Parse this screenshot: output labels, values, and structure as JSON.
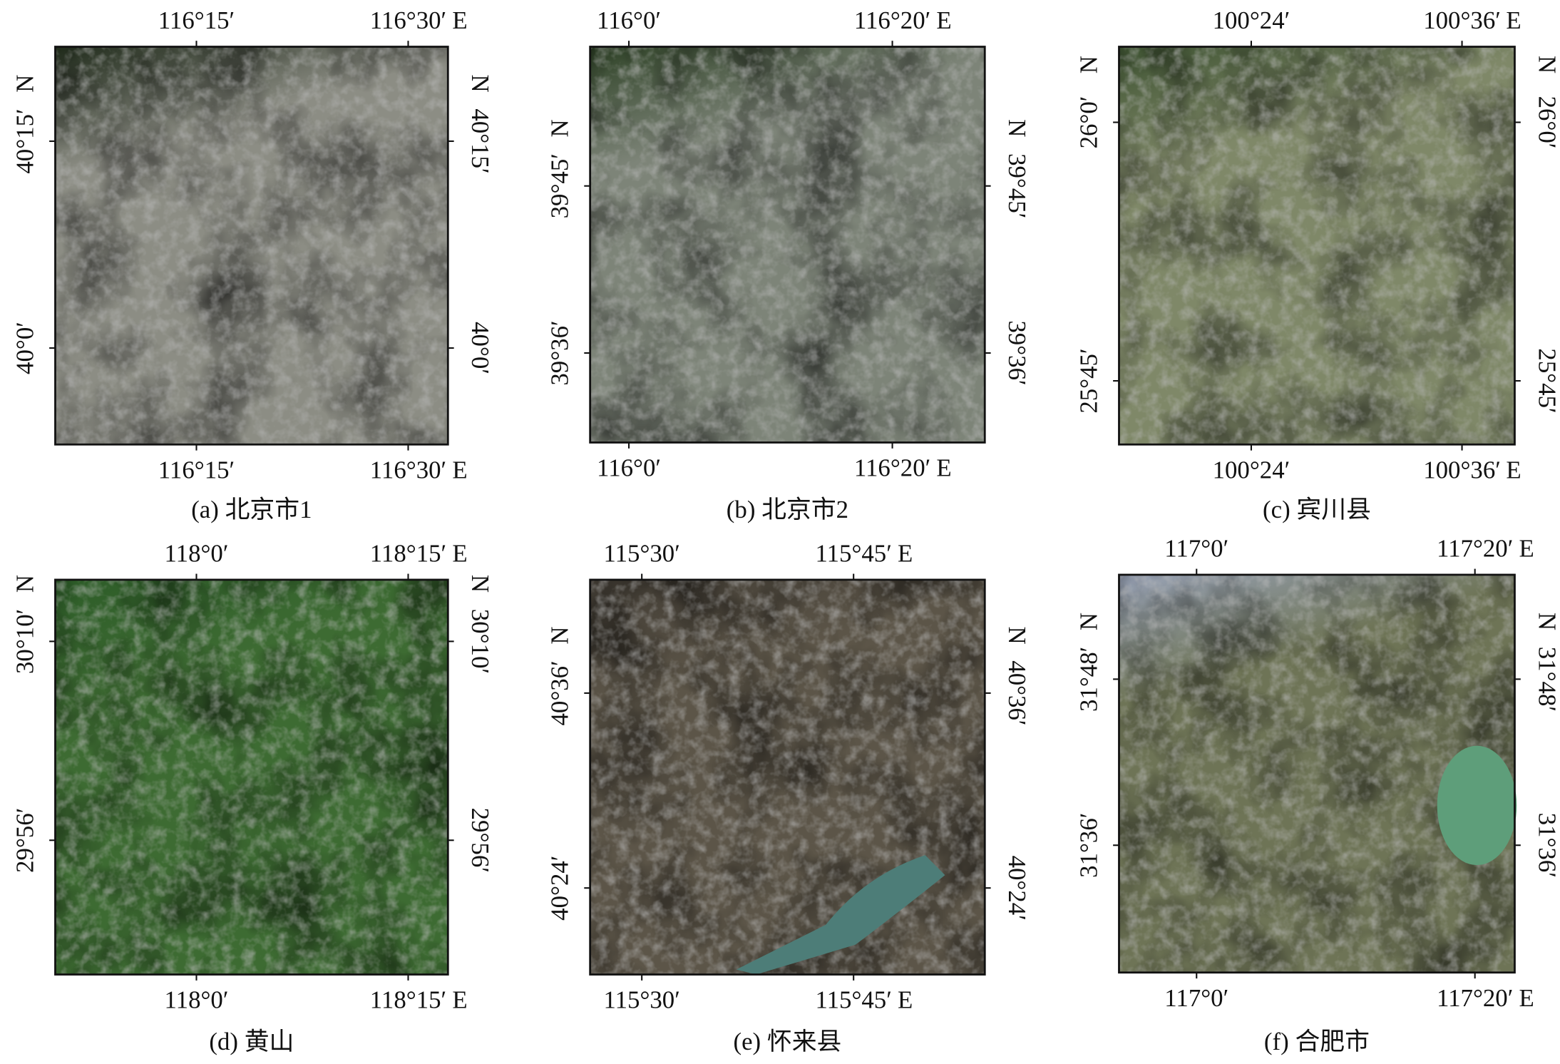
{
  "panels": [
    {
      "caption": "(a) 北京市1",
      "x_ticks": [
        "116°15′",
        "116°30′"
      ],
      "x_hemisphere": "E",
      "y_ticks": [
        "40°15′",
        "40°0′"
      ],
      "y_hemisphere": "N"
    },
    {
      "caption": "(b) 北京市2",
      "x_ticks": [
        "116°0′",
        "116°20′"
      ],
      "x_hemisphere": "E",
      "y_ticks": [
        "39°45′",
        "39°36′"
      ],
      "y_hemisphere": "N"
    },
    {
      "caption": "(c) 宾川县",
      "x_ticks": [
        "100°24′",
        "100°36′"
      ],
      "x_hemisphere": "E",
      "y_ticks": [
        "26°0′",
        "25°45′"
      ],
      "y_hemisphere": "N"
    },
    {
      "caption": "(d) 黄山",
      "x_ticks": [
        "118°0′",
        "118°15′"
      ],
      "x_hemisphere": "E",
      "y_ticks": [
        "30°10′",
        "29°56′"
      ],
      "y_hemisphere": "N"
    },
    {
      "caption": "(e) 怀来县",
      "x_ticks": [
        "115°30′",
        "115°45′"
      ],
      "x_hemisphere": "E",
      "y_ticks": [
        "40°36′",
        "40°24′"
      ],
      "y_hemisphere": "N"
    },
    {
      "caption": "(f) 合肥市",
      "x_ticks": [
        "117°0′",
        "117°20′"
      ],
      "x_hemisphere": "E",
      "y_ticks": [
        "31°48′",
        "31°36′"
      ],
      "y_hemisphere": "N"
    }
  ]
}
